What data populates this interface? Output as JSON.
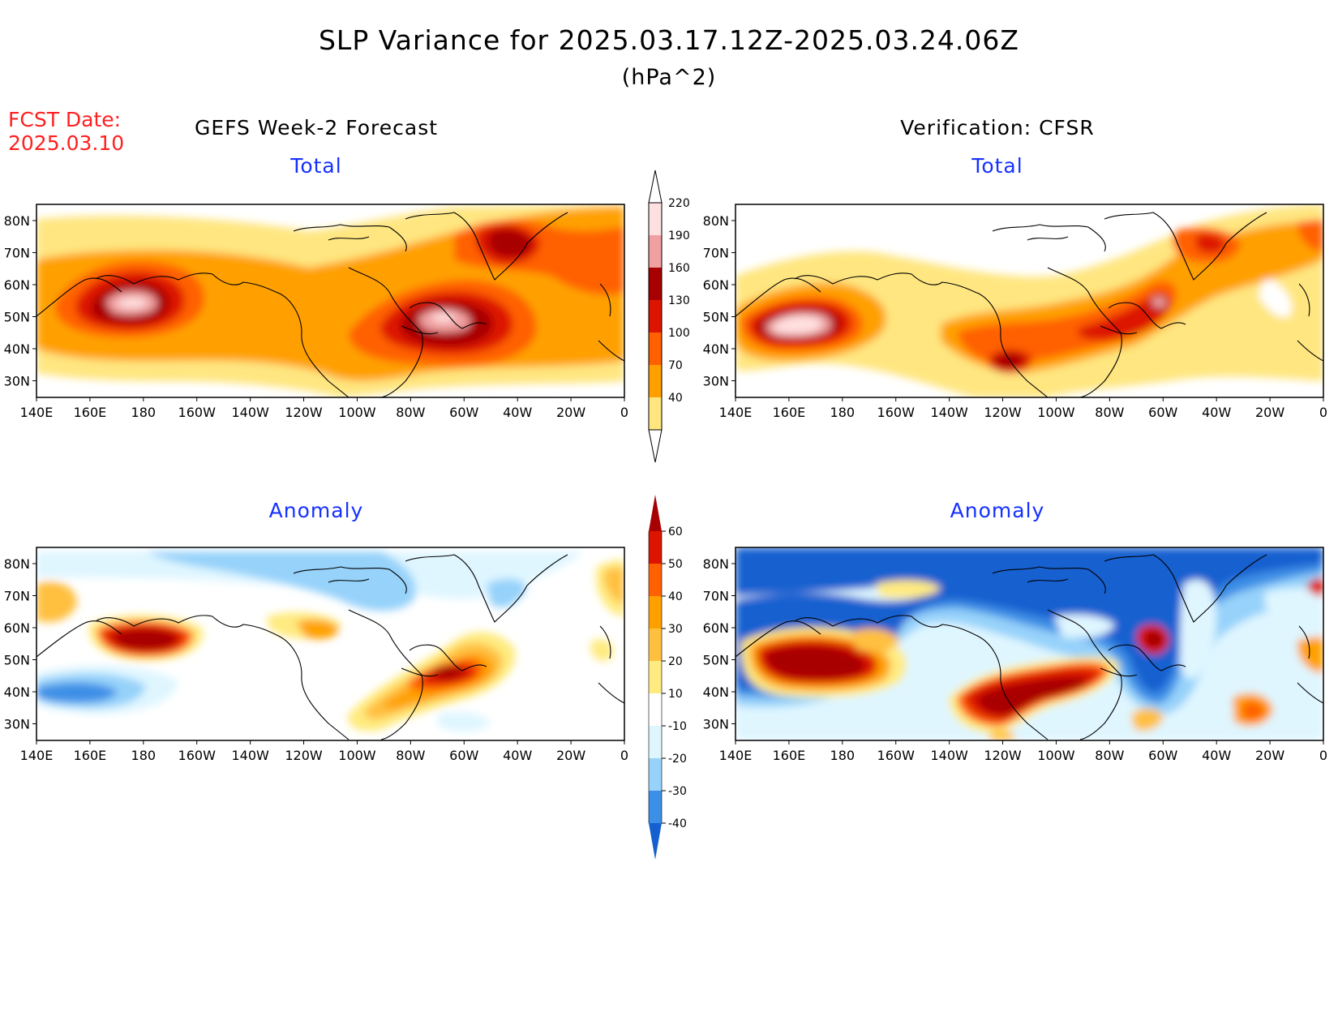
{
  "header": {
    "title": "SLP Variance for 2025.03.17.12Z-2025.03.24.06Z",
    "units": "(hPa^2)",
    "fcst_label": "FCST Date:",
    "fcst_date": "2025.03.10"
  },
  "columns": {
    "left": "GEFS Week-2 Forecast",
    "right": "Verification: CFSR"
  },
  "panels": {
    "total_label": "Total",
    "anomaly_label": "Anomaly"
  },
  "axes": {
    "lat_labels": [
      "80N",
      "70N",
      "60N",
      "50N",
      "40N",
      "30N"
    ],
    "lon_labels": [
      "140E",
      "160E",
      "180",
      "160W",
      "140W",
      "120W",
      "100W",
      "80W",
      "60W",
      "40W",
      "20W",
      "0"
    ]
  },
  "colorbars": {
    "total": {
      "levels": [
        "40",
        "70",
        "100",
        "130",
        "160",
        "190",
        "220"
      ],
      "colors": [
        "#ffe680",
        "#ffa000",
        "#ff6000",
        "#dd1500",
        "#a80000",
        "#f0a0a0",
        "#ffe0e0"
      ]
    },
    "anomaly": {
      "levels": [
        "60",
        "50",
        "40",
        "30",
        "20",
        "10",
        "-10",
        "-20",
        "-30",
        "-40"
      ],
      "colors": [
        "#a80000",
        "#dd1500",
        "#ff6000",
        "#ffa000",
        "#ffc040",
        "#ffeb80",
        "#ffffff",
        "#dff6ff",
        "#96d2fa",
        "#3c8fe6",
        "#1560d0"
      ]
    }
  },
  "colors": {
    "title_text": "#000000",
    "fcst_text": "#ff2020",
    "panel_label": "#1530ff"
  }
}
